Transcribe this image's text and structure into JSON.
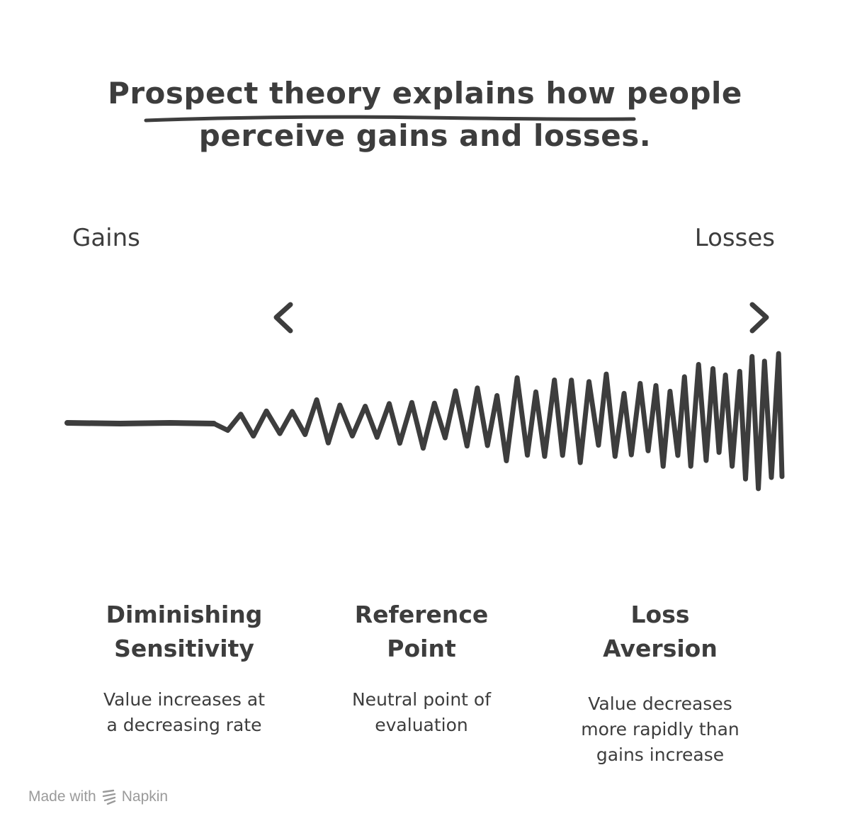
{
  "title": {
    "line1": "Prospect theory explains how people",
    "line2": "perceive gains and losses."
  },
  "axis": {
    "left_label": "Gains",
    "right_label": "Losses",
    "left_arrow_icon": "chevron-left-icon",
    "right_arrow_icon": "chevron-right-icon"
  },
  "concepts": [
    {
      "title_line1": "Diminishing",
      "title_line2": "Sensitivity",
      "desc_line1": "Value increases at",
      "desc_line2": "a decreasing rate"
    },
    {
      "title_line1": "Reference",
      "title_line2": "Point",
      "desc_line1": "Neutral point of",
      "desc_line2": "evaluation"
    },
    {
      "title_line1": "Loss",
      "title_line2": "Aversion",
      "desc_line1": "Value decreases",
      "desc_line2": "more rapidly than",
      "desc_line3": "gains increase"
    }
  ],
  "footer": {
    "prefix": "Made with",
    "brand": "Napkin",
    "logo_icon": "napkin-logo-icon"
  },
  "colors": {
    "ink": "#3d3d3d",
    "footer": "#9a9a9a",
    "background": "#ffffff"
  }
}
